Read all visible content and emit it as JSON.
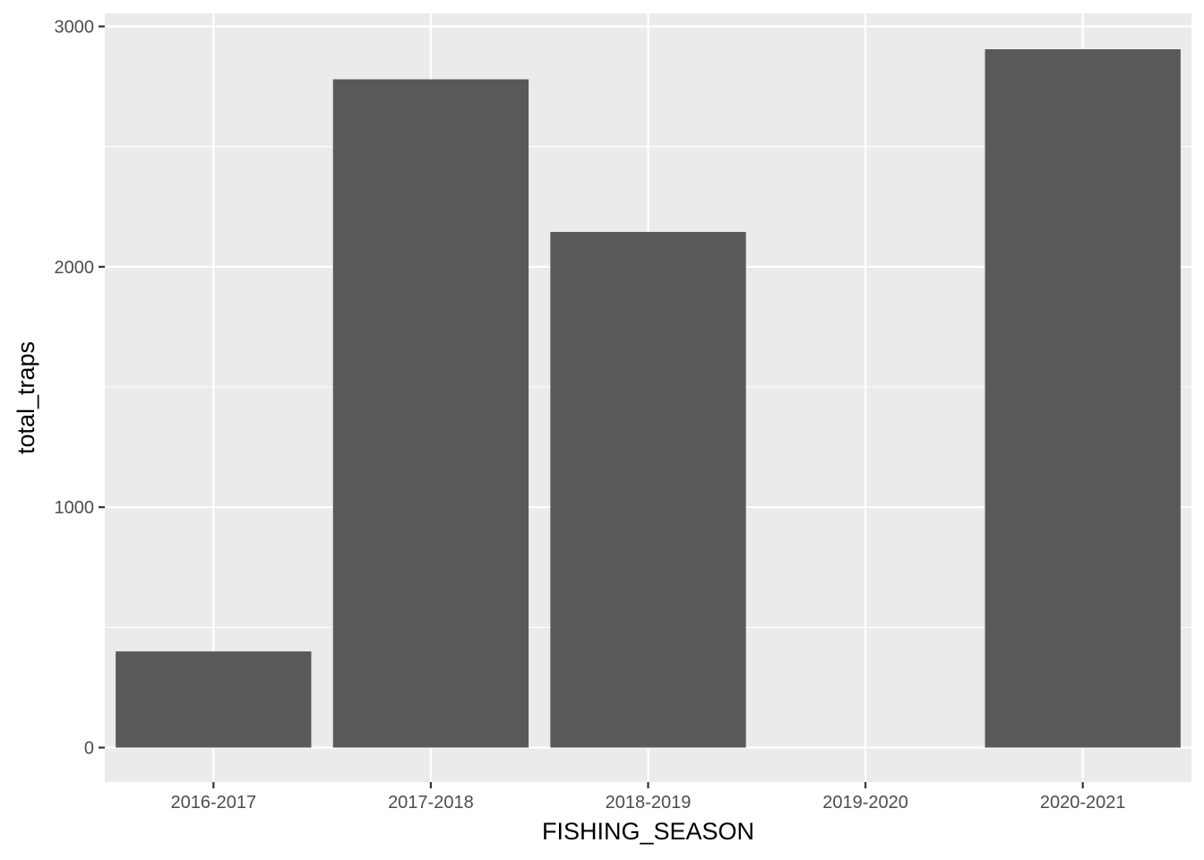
{
  "chart_data": {
    "type": "bar",
    "title": "",
    "xlabel": "FISHING_SEASON",
    "ylabel": "total_traps",
    "categories": [
      "2016-2017",
      "2017-2018",
      "2018-2019",
      "2019-2020",
      "2020-2021"
    ],
    "values": [
      400,
      2780,
      2145,
      null,
      2905
    ],
    "ylim": [
      -140,
      3055
    ],
    "yticks": [
      0,
      1000,
      2000,
      3000
    ],
    "ytick_labels": [
      "0",
      "1000",
      "2000",
      "3000"
    ],
    "y_minor_ticks": [
      500,
      1500,
      2500
    ],
    "grid": true,
    "legend": "none",
    "colors": {
      "panel_background": "#ebebeb",
      "grid": "#ffffff",
      "bar": "#595959",
      "axis_tick": "#333333",
      "tick_text": "#4d4d4d"
    }
  }
}
